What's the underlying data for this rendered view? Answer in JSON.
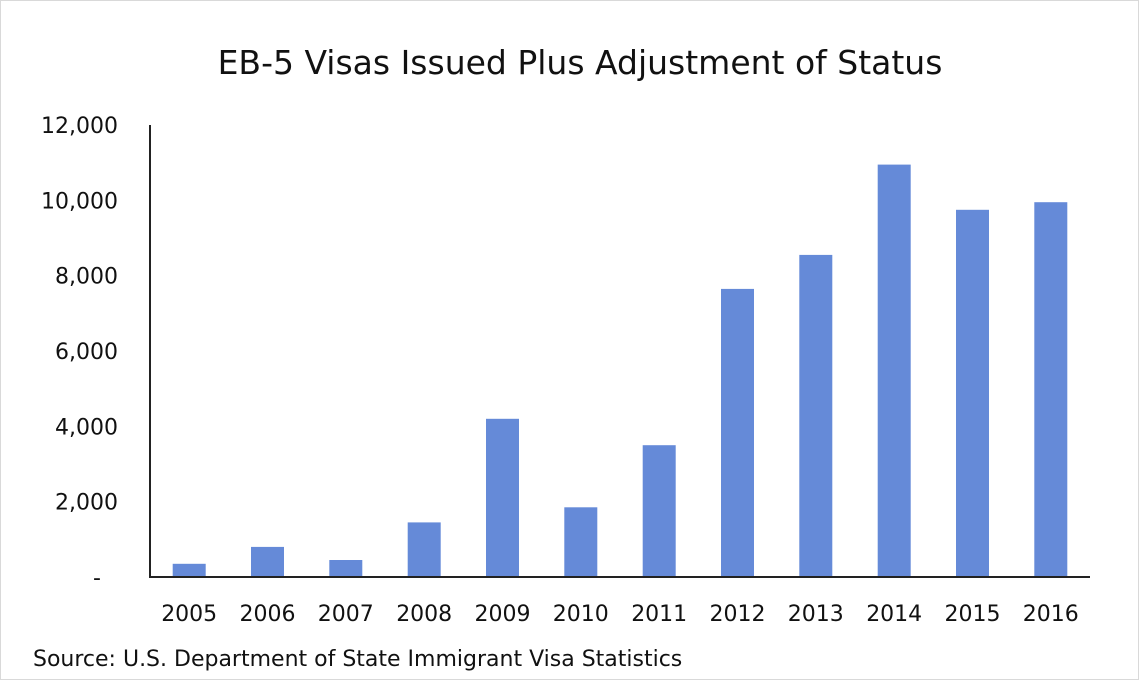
{
  "chart_data": {
    "type": "bar",
    "title": "EB-5 Visas Issued Plus Adjustment of Status",
    "xlabel": "",
    "ylabel": "",
    "categories": [
      "2005",
      "2006",
      "2007",
      "2008",
      "2009",
      "2010",
      "2011",
      "2012",
      "2013",
      "2014",
      "2015",
      "2016"
    ],
    "values": [
      350,
      800,
      450,
      1450,
      4200,
      1850,
      3500,
      7650,
      8550,
      10950,
      9750,
      9950
    ],
    "ylim": [
      0,
      12000
    ],
    "yticks": [
      {
        "value": 0,
        "label": "-"
      },
      {
        "value": 2000,
        "label": "2,000"
      },
      {
        "value": 4000,
        "label": "4,000"
      },
      {
        "value": 6000,
        "label": "6,000"
      },
      {
        "value": 8000,
        "label": "8,000"
      },
      {
        "value": 10000,
        "label": "10,000"
      },
      {
        "value": 12000,
        "label": "12,000"
      }
    ],
    "grid": false,
    "bar_color": "#658ad8",
    "source": "Source: U.S. Department of State Immigrant Visa Statistics"
  }
}
